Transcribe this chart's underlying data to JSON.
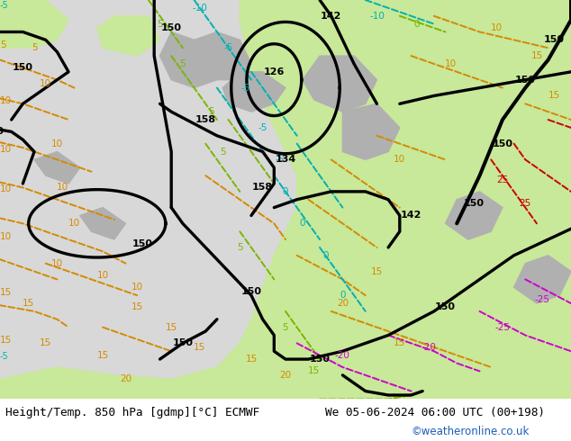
{
  "title": "Height/Temp. 850 hPa [gdmp][°C] ECMWF",
  "date_str": "We 05-06-2024 06:00 UTC (00+198)",
  "credit": "©weatheronline.co.uk",
  "bg_gray": "#d8d8d8",
  "bg_green": "#c8e89a",
  "bg_dark_gray": "#b0b0b0",
  "orange": "#d48a00",
  "green_t": "#7ab500",
  "teal": "#00b0b0",
  "red_t": "#cc0000",
  "magenta": "#cc00cc",
  "blue_credit": "#1a5fb4",
  "figsize": [
    6.34,
    4.9
  ],
  "dpi": 100
}
